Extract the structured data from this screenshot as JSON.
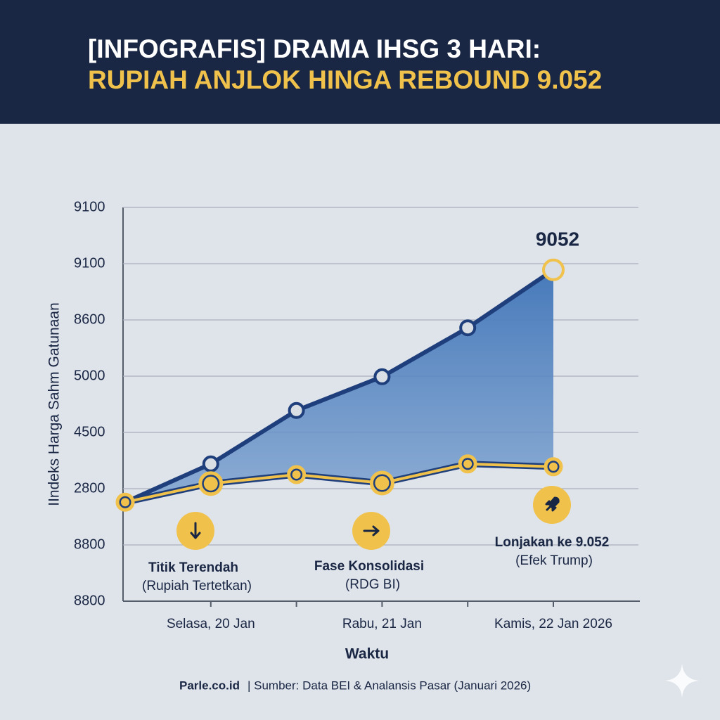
{
  "chart_data": {
    "type": "line",
    "title": "[INFOGRAFIS] DRAMA IHSG 3 HARI:",
    "subtitle": "RUPIAH ANJLOK HINGA REBOUND 9.052",
    "y_label": "IIndeks Harga Sahm Gatunaan",
    "x_label": "Waktu",
    "categories": [
      null,
      "Selasa, 20 Jan",
      null,
      "Rabu, 21 Jan",
      null,
      "Kamis, 22 Jan 2026"
    ],
    "series": [
      {
        "color": "#1e3f7c",
        "values": [
          1.76,
          2.44,
          3.39,
          3.99,
          4.86,
          5.89
        ]
      },
      {
        "color": "#f0c24b",
        "values": [
          1.76,
          2.09,
          2.25,
          2.1,
          2.44,
          2.39
        ]
      }
    ],
    "ylim": [
      0,
      7
    ],
    "yticks": [
      {
        "value": 0,
        "label": "8800"
      },
      {
        "value": 1,
        "label": "8800"
      },
      {
        "value": 2,
        "label": "2800"
      },
      {
        "value": 3,
        "label": "4500"
      },
      {
        "value": 4,
        "label": "5000"
      },
      {
        "value": 5,
        "label": "8600"
      },
      {
        "value": 6,
        "label": "9100"
      },
      {
        "value": 7,
        "label": "9100"
      }
    ],
    "grid": true,
    "peak_label": "9052",
    "annotations": [
      {
        "title": "Titik Terendah",
        "note": "(Rupiah Tertetkan)"
      },
      {
        "title": "Fase Konsolidasi",
        "note": "(RDG BI)"
      },
      {
        "title": "Lonjakan ke 9.052",
        "note": "(Efek Trump)"
      }
    ],
    "footer": {
      "brand": "Parle.co.id",
      "source": "| Sumber: Data BEI & Analansis Pasar (Januari 2026)"
    }
  }
}
